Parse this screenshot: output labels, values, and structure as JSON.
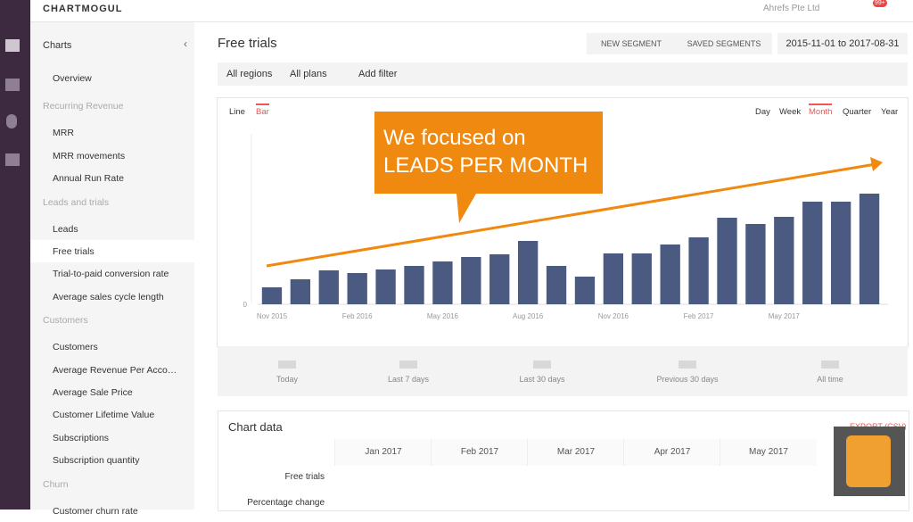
{
  "header": {
    "logo": "CHARTMOGUL",
    "company": "Ahrefs Pte Ltd",
    "badge": "99+"
  },
  "sidebar": {
    "title": "Charts",
    "sections": [
      {
        "heading": null,
        "items": [
          "Overview"
        ]
      },
      {
        "heading": "Recurring Revenue",
        "items": [
          "MRR",
          "MRR movements",
          "Annual Run Rate"
        ]
      },
      {
        "heading": "Leads and trials",
        "items": [
          "Leads",
          "Free trials",
          "Trial-to-paid conversion rate",
          "Average sales cycle length"
        ]
      },
      {
        "heading": "Customers",
        "items": [
          "Customers",
          "Average Revenue Per Acco…",
          "Average Sale Price",
          "Customer Lifetime Value",
          "Subscriptions",
          "Subscription quantity"
        ]
      },
      {
        "heading": "Churn",
        "items": [
          "Customer churn rate"
        ]
      }
    ]
  },
  "page": {
    "title": "Free trials",
    "buttons": [
      "NEW SEGMENT",
      "SAVED SEGMENTS"
    ],
    "date_range": "2015-11-01 to 2017-08-31",
    "filters": [
      "All regions",
      "All plans",
      "Add filter"
    ]
  },
  "toolbar": {
    "types": [
      "Line",
      "Bar"
    ],
    "periods": [
      "Day",
      "Week",
      "Month",
      "Quarter",
      "Year"
    ]
  },
  "chart_data": {
    "type": "bar",
    "annotation": [
      "We focused on",
      "LEADS PER MONTH"
    ],
    "color": "#4a5a80",
    "categories": [
      "Nov 2015",
      null,
      null,
      "Feb 2016",
      null,
      null,
      "May 2016",
      null,
      null,
      "Aug 2016",
      null,
      null,
      "Nov 2016",
      null,
      null,
      "Feb 2017",
      null,
      null,
      "May 2017",
      null,
      null,
      null
    ],
    "values": [
      19,
      28,
      38,
      35,
      39,
      43,
      48,
      53,
      56,
      71,
      43,
      31,
      57,
      57,
      67,
      75,
      97,
      90,
      98,
      115,
      115,
      124
    ],
    "ylim": [
      0,
      190
    ],
    "yticks": [
      0
    ]
  },
  "stats": [
    "Today",
    "Last 7 days",
    "Last 30 days",
    "Previous 30 days",
    "All time"
  ],
  "table": {
    "title": "Chart data",
    "export": "EXPORT (CSV)",
    "columns": [
      "Jan 2017",
      "Feb 2017",
      "Mar 2017",
      "Apr 2017",
      "May 2017"
    ],
    "rows": [
      "Free trials",
      "Percentage change"
    ]
  }
}
